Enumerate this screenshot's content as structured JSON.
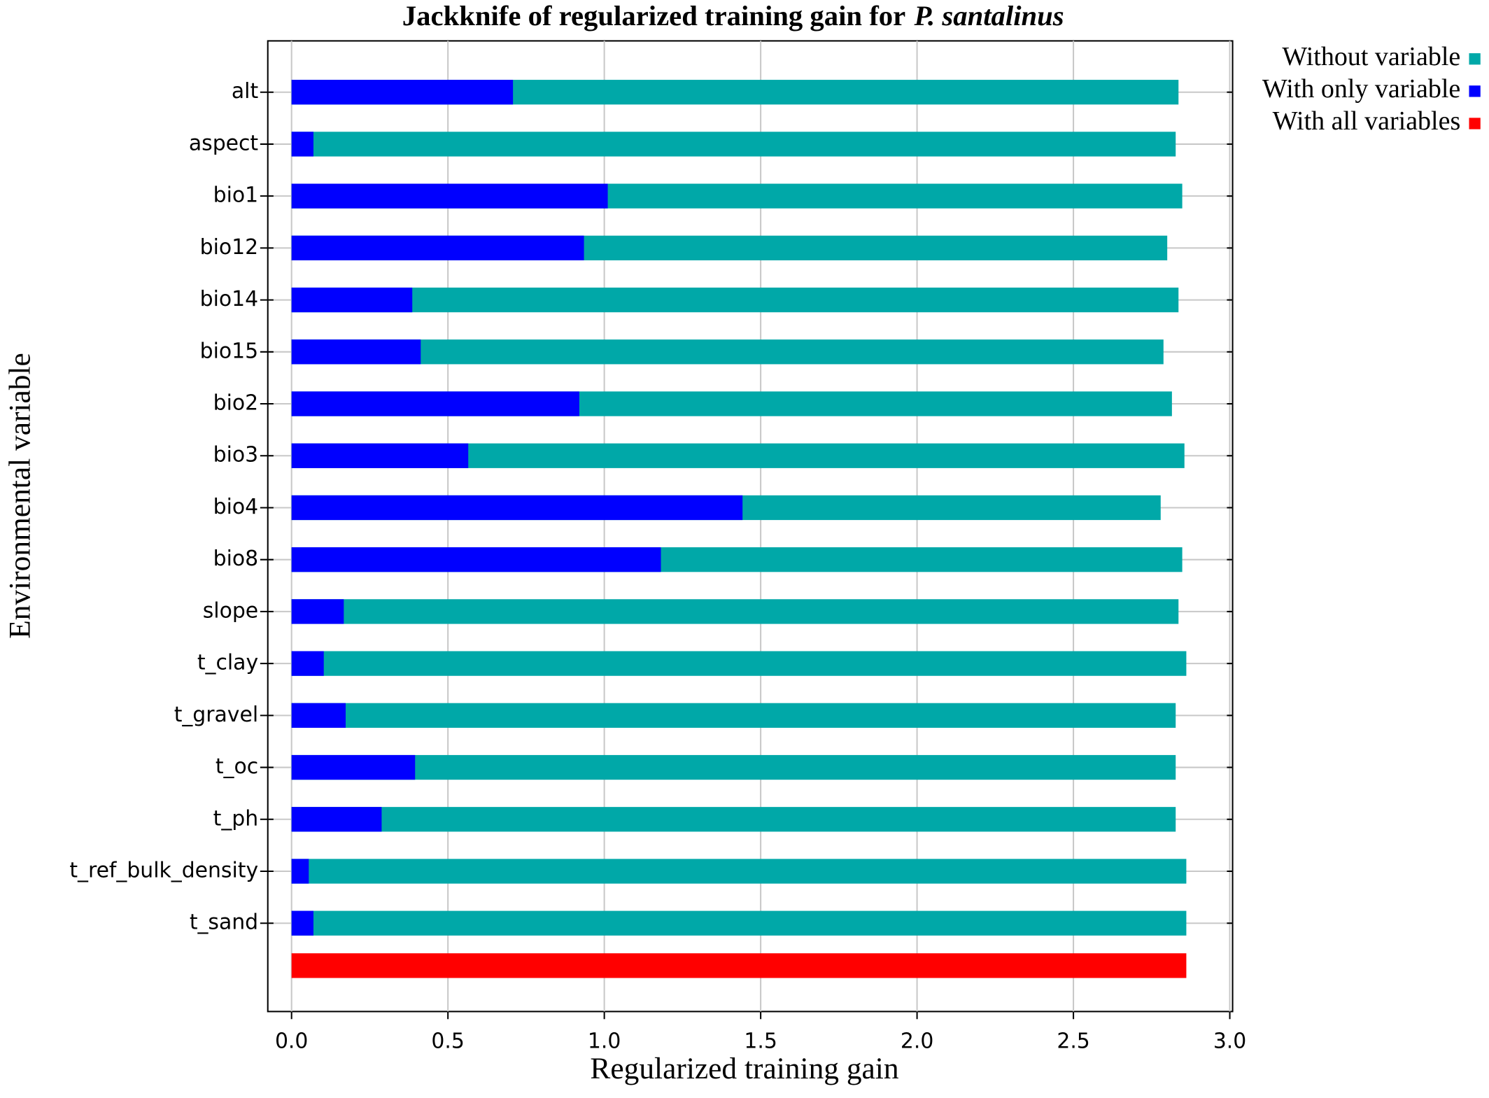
{
  "chart_data": {
    "type": "bar",
    "orientation": "horizontal",
    "title": {
      "text": "Jackknife of regularized training gain for",
      "species": "P. santalinus"
    },
    "xlabel": "Regularized training gain",
    "ylabel": "Environmental  variable",
    "categories": [
      "alt",
      "aspect",
      "bio1",
      "bio12",
      "bio14",
      "bio15",
      "bio2",
      "bio3",
      "bio4",
      "bio8",
      "slope",
      "t_clay",
      "t_gravel",
      "t_oc",
      "t_ph",
      "t_ref_bulk_density",
      "t_sand",
      null
    ],
    "series": [
      {
        "name": "Without variable",
        "color": "#00a8a8",
        "values": [
          2.836,
          2.827,
          2.848,
          2.8,
          2.836,
          2.788,
          2.815,
          2.855,
          2.779,
          2.848,
          2.836,
          2.861,
          2.827,
          2.827,
          2.827,
          2.861,
          2.861,
          null
        ]
      },
      {
        "name": "With only variable",
        "color": "#0000ff",
        "values": [
          0.708,
          0.07,
          1.011,
          0.935,
          0.386,
          0.413,
          0.92,
          0.565,
          1.442,
          1.181,
          0.167,
          0.103,
          0.173,
          0.395,
          0.288,
          0.055,
          0.07,
          null
        ]
      },
      {
        "name": "With all variables",
        "color": "#ff0000",
        "values": [
          null,
          null,
          null,
          null,
          null,
          null,
          null,
          null,
          null,
          null,
          null,
          null,
          null,
          null,
          null,
          null,
          null,
          2.861
        ]
      }
    ],
    "xlim": [
      -0.076,
      3.009
    ],
    "xticks": [
      {
        "value": 0,
        "label": "0.0"
      },
      0.5,
      {
        "value": 1,
        "label": "1.0"
      },
      1.5,
      {
        "value": 2,
        "label": "2.0"
      },
      2.5,
      {
        "value": 3,
        "label": "3.0"
      }
    ],
    "grid": true,
    "legend": "outside-top-right"
  }
}
